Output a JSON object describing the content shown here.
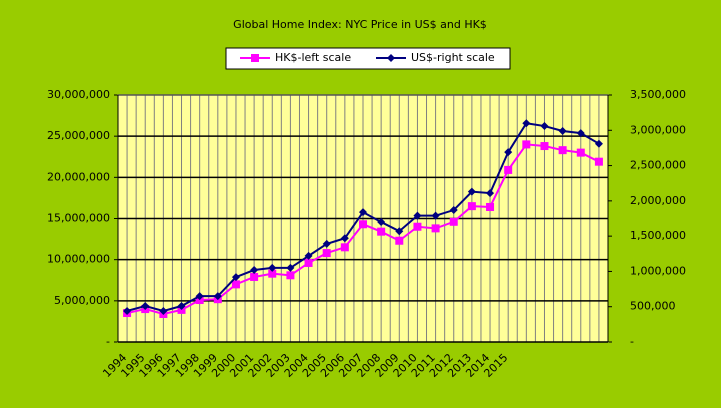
{
  "chart_data": {
    "type": "line",
    "title": "Global Home Index: NYC Price in US$ and HK$",
    "categories": [
      "1994",
      "1995",
      "1996",
      "1997",
      "1998",
      "1999",
      "2000",
      "2001",
      "2002",
      "2003",
      "2004",
      "2005",
      "2006",
      "2007",
      "2008",
      "2009",
      "2010",
      "2011",
      "2012",
      "2013",
      "2014",
      "2015",
      null,
      null,
      null,
      null,
      null
    ],
    "series": [
      {
        "name": "HK$-left scale",
        "color": "#ff00ff",
        "marker": "square",
        "values": [
          3520000,
          4000000,
          3400000,
          3900000,
          5100000,
          5200000,
          7000000,
          7900000,
          8300000,
          8100000,
          9600000,
          10800000,
          11500000,
          14300000,
          13400000,
          12300000,
          14000000,
          13800000,
          14600000,
          16500000,
          16400000,
          20900000,
          24000000,
          23800000,
          23300000,
          23000000,
          21900000
        ]
      },
      {
        "name": "US$-right scale",
        "color": "#000080",
        "marker": "diamond",
        "axis": "y2",
        "values": [
          440000,
          510000,
          440000,
          510000,
          650000,
          650000,
          920000,
          1020000,
          1050000,
          1050000,
          1220000,
          1390000,
          1470000,
          1840000,
          1700000,
          1570000,
          1790000,
          1790000,
          1870000,
          2130000,
          2110000,
          2690000,
          3100000,
          3060000,
          2990000,
          2960000,
          2810000
        ]
      }
    ],
    "ylim": [
      0,
      30000000
    ],
    "yticks": [
      {
        "value": 0,
        "label": "-"
      },
      {
        "value": 5000000,
        "label": "5,000,000"
      },
      {
        "value": 10000000,
        "label": "10,000,000"
      },
      {
        "value": 15000000,
        "label": "15,000,000"
      },
      {
        "value": 20000000,
        "label": "20,000,000"
      },
      {
        "value": 25000000,
        "label": "25,000,000"
      },
      {
        "value": 30000000,
        "label": "30,000,000"
      }
    ],
    "y2lim": [
      0,
      3500000
    ],
    "y2ticks": [
      {
        "value": 0,
        "label": "-"
      },
      {
        "value": 500000,
        "label": "500,000"
      },
      {
        "value": 1000000,
        "label": "1,000,000"
      },
      {
        "value": 1500000,
        "label": "1,500,000"
      },
      {
        "value": 2000000,
        "label": "2,000,000"
      },
      {
        "value": 2500000,
        "label": "2,500,000"
      },
      {
        "value": 3000000,
        "label": "3,000,000"
      },
      {
        "value": 3500000,
        "label": "3,500,000"
      }
    ],
    "grid": true,
    "legend": "top"
  }
}
